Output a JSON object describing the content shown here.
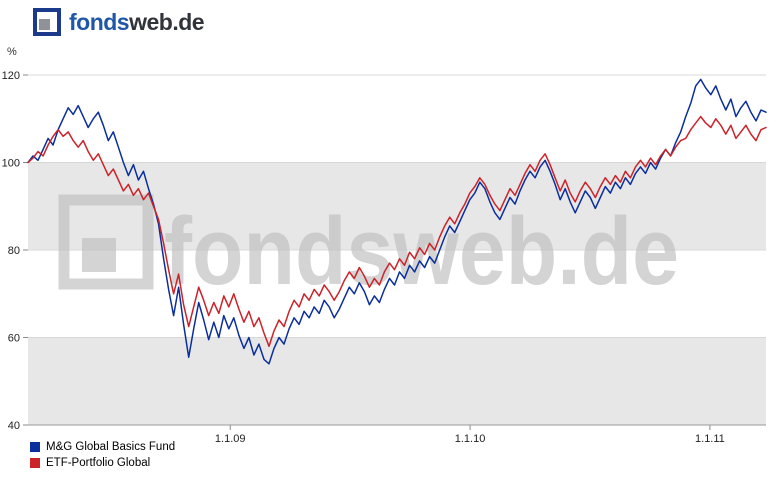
{
  "logo": {
    "fonds": "fonds",
    "webde": "web.de"
  },
  "chart": {
    "unit_label": "%"
  },
  "chart_data": {
    "type": "line",
    "title": "",
    "ylabel": "%",
    "xlabel": "",
    "ylim": [
      40,
      120
    ],
    "yticks": [
      40,
      60,
      80,
      100,
      120
    ],
    "xticks": [
      {
        "label": "1.1.09",
        "f": 0.274
      },
      {
        "label": "1.1.10",
        "f": 0.599
      },
      {
        "label": "1.1.11",
        "f": 0.924
      }
    ],
    "grid": "horizontal-bands",
    "legend_position": "bottom-left",
    "bands": {
      "ranges": [
        [
          40,
          60
        ],
        [
          80,
          100
        ]
      ],
      "color": "#e7e7e7"
    },
    "watermark": {
      "text": "fondsweb.de",
      "color": "#c2c2c2",
      "opacity": 0.7
    },
    "series": [
      {
        "name": "M&G Global Basics Fund",
        "color": "#0a2f9c",
        "values": [
          100,
          101.5,
          100.5,
          103,
          105.5,
          104,
          107.5,
          110,
          112.5,
          111,
          113,
          110.5,
          108,
          110,
          111.5,
          108.5,
          105,
          107,
          103.5,
          100,
          97,
          99.5,
          96,
          98,
          94,
          90.5,
          86,
          78,
          71,
          65,
          71.5,
          63,
          55.5,
          62,
          68,
          64,
          59.5,
          63.5,
          60,
          65,
          62,
          64.5,
          60.5,
          57.5,
          60,
          56,
          58.5,
          55,
          54,
          57.5,
          60,
          58.5,
          62,
          64.5,
          63,
          66,
          64.5,
          67,
          65.5,
          68.5,
          67,
          64.5,
          66.5,
          69,
          71.5,
          70,
          72.5,
          70.5,
          67.5,
          69.5,
          68,
          71,
          73.5,
          72,
          75,
          73.5,
          76.5,
          75,
          77.5,
          76,
          78.5,
          77,
          80,
          83,
          85.5,
          84,
          86.5,
          89,
          91.5,
          93,
          95.5,
          94,
          91,
          88.5,
          87,
          89.5,
          92,
          90.5,
          93.5,
          96,
          98,
          96.5,
          99,
          100.5,
          98,
          95,
          91.5,
          94,
          91,
          88.5,
          91,
          93.5,
          92,
          89.5,
          92,
          94.5,
          93,
          95.5,
          94,
          96.5,
          95,
          97.5,
          99,
          97.5,
          100,
          98.5,
          101,
          103,
          101.5,
          104.5,
          107,
          110.5,
          113.5,
          117.5,
          119,
          117,
          115.5,
          117.5,
          114.5,
          112,
          114.5,
          110.5,
          112.5,
          114,
          111.5,
          109.5,
          112,
          111.5
        ]
      },
      {
        "name": "ETF-Portfolio Global",
        "color": "#cc2229",
        "values": [
          100,
          101,
          102.5,
          101.5,
          104,
          106,
          107.5,
          106,
          107,
          105,
          103.5,
          105,
          102.5,
          100.5,
          102,
          99.5,
          97,
          98.5,
          96,
          93.5,
          95,
          92.5,
          94,
          91.5,
          93,
          90,
          87,
          81.5,
          75.5,
          70,
          74.5,
          67.5,
          62.5,
          67,
          71.5,
          68.5,
          65,
          68,
          65.5,
          69.5,
          67,
          70,
          66.5,
          63.5,
          66,
          62.5,
          64.5,
          61,
          58,
          61.5,
          64,
          62.5,
          66,
          68.5,
          67,
          70,
          68.5,
          71,
          69.5,
          72,
          70.5,
          68.5,
          70.5,
          73,
          75,
          73.5,
          76,
          74,
          71.5,
          73.5,
          72,
          75,
          77,
          75.5,
          78,
          76.5,
          79.5,
          78,
          80.5,
          79,
          81.5,
          80,
          83,
          85.5,
          87.5,
          86,
          88.5,
          90.5,
          93,
          94.5,
          96.5,
          95,
          92.5,
          90.5,
          89,
          91.5,
          94,
          92.5,
          95,
          97.5,
          99.5,
          98,
          100.5,
          102,
          99.5,
          96.5,
          93.5,
          96,
          93,
          91,
          93.5,
          95.5,
          94,
          92,
          94.5,
          96.5,
          95,
          97,
          95.5,
          98,
          96.5,
          99,
          100.5,
          99,
          101,
          99.5,
          101.5,
          103,
          101.5,
          103.5,
          105,
          105.5,
          107.5,
          109,
          110.5,
          109,
          108,
          110,
          108.5,
          106.5,
          108.5,
          105.5,
          107,
          108.5,
          106.5,
          105,
          107.5,
          108
        ]
      }
    ]
  }
}
